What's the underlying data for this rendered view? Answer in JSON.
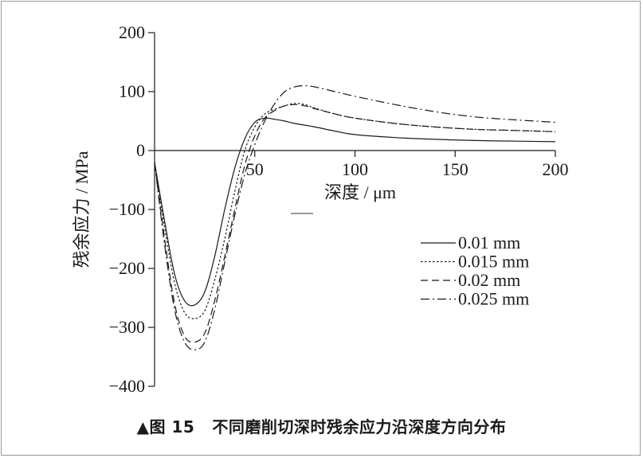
{
  "chart_data": {
    "type": "line",
    "xlabel": "深度 / μm",
    "ylabel": "残余应力 / MPa",
    "xlim": [
      0,
      200
    ],
    "ylim": [
      -400,
      200
    ],
    "x_ticks": [
      50,
      100,
      150,
      200
    ],
    "y_ticks": [
      200,
      100,
      0,
      -100,
      -200,
      -300,
      -400
    ],
    "x_tick_labels": [
      "50",
      "100",
      "150",
      "200"
    ],
    "y_tick_labels": [
      "200",
      "100",
      "0",
      "−100",
      "−200",
      "−300",
      "−400"
    ],
    "grid": false,
    "legend_position": "right",
    "series": [
      {
        "name": "0.01 mm",
        "style": "solid",
        "x": [
          0,
          5,
          10,
          15,
          20,
          25,
          30,
          35,
          40,
          45,
          50,
          55,
          60,
          65,
          70,
          80,
          90,
          100,
          120,
          140,
          160,
          180,
          200
        ],
        "y": [
          -20,
          -120,
          -210,
          -255,
          -262,
          -240,
          -180,
          -100,
          -30,
          20,
          48,
          55,
          53,
          50,
          46,
          40,
          33,
          27,
          22,
          19,
          17,
          16,
          15
        ]
      },
      {
        "name": "0.015 mm",
        "style": "dotted",
        "x": [
          0,
          5,
          10,
          15,
          20,
          25,
          30,
          35,
          40,
          45,
          50,
          55,
          60,
          65,
          70,
          75,
          80,
          90,
          100,
          120,
          140,
          160,
          180,
          200
        ],
        "y": [
          -20,
          -130,
          -225,
          -275,
          -285,
          -272,
          -220,
          -150,
          -70,
          0,
          40,
          62,
          70,
          76,
          80,
          78,
          72,
          62,
          55,
          46,
          40,
          36,
          34,
          32
        ]
      },
      {
        "name": "0.02 mm",
        "style": "dashed",
        "x": [
          0,
          5,
          10,
          15,
          20,
          25,
          30,
          35,
          40,
          45,
          50,
          55,
          60,
          65,
          70,
          75,
          80,
          90,
          100,
          120,
          140,
          160,
          180,
          200
        ],
        "y": [
          -20,
          -150,
          -260,
          -315,
          -325,
          -310,
          -255,
          -180,
          -100,
          -25,
          25,
          55,
          68,
          76,
          78,
          76,
          71,
          62,
          55,
          46,
          40,
          36,
          34,
          32
        ]
      },
      {
        "name": "0.025 mm",
        "style": "dashdot",
        "x": [
          0,
          5,
          10,
          15,
          20,
          25,
          30,
          35,
          40,
          45,
          50,
          55,
          60,
          65,
          70,
          75,
          80,
          90,
          100,
          120,
          140,
          160,
          180,
          200
        ],
        "y": [
          -20,
          -160,
          -270,
          -325,
          -338,
          -325,
          -270,
          -190,
          -110,
          -40,
          10,
          50,
          80,
          100,
          108,
          110,
          108,
          100,
          92,
          78,
          66,
          57,
          52,
          48
        ]
      }
    ]
  },
  "caption": {
    "marker": "▲图 15",
    "text": "不同磨削切深时残余应力沿深度方向分布"
  }
}
